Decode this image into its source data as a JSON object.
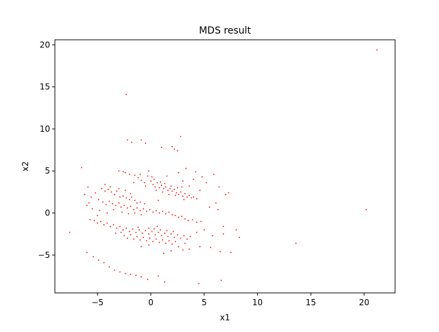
{
  "chart_data": {
    "type": "scatter",
    "title": "MDS result",
    "xlabel": "x1",
    "ylabel": "x2",
    "xlim": [
      -9.0,
      22.9
    ],
    "ylim": [
      -9.5,
      20.6
    ],
    "xticks": [
      -5,
      0,
      5,
      10,
      15,
      20
    ],
    "yticks": [
      -5,
      0,
      5,
      10,
      15,
      20
    ],
    "grid": false,
    "marker_color": "#ff0000",
    "series": [
      {
        "points": [
          [
            21.2,
            19.4
          ],
          [
            20.2,
            0.4
          ],
          [
            13.6,
            -3.6
          ],
          [
            -2.3,
            14.1
          ],
          [
            -7.6,
            -2.3
          ],
          [
            -6.5,
            5.4
          ],
          [
            -2.2,
            8.7
          ],
          [
            -1.8,
            8.4
          ],
          [
            -0.9,
            8.7
          ],
          [
            -0.5,
            8.3
          ],
          [
            1.0,
            7.8
          ],
          [
            2.0,
            7.9
          ],
          [
            2.8,
            9.1
          ],
          [
            2.5,
            7.4
          ],
          [
            2.2,
            7.6
          ],
          [
            -3.0,
            5.0
          ],
          [
            -2.6,
            4.9
          ],
          [
            -2.4,
            4.8
          ],
          [
            -2.0,
            4.6
          ],
          [
            -1.5,
            4.5
          ],
          [
            -1.2,
            4.2
          ],
          [
            -0.9,
            3.9
          ],
          [
            -0.6,
            3.6
          ],
          [
            -0.3,
            4.4
          ],
          [
            0.0,
            3.8
          ],
          [
            0.2,
            3.4
          ],
          [
            0.4,
            3.1
          ],
          [
            0.6,
            3.6
          ],
          [
            0.8,
            3.0
          ],
          [
            1.0,
            3.3
          ],
          [
            1.2,
            2.9
          ],
          [
            1.4,
            3.1
          ],
          [
            1.6,
            2.7
          ],
          [
            1.8,
            2.9
          ],
          [
            2.0,
            2.6
          ],
          [
            2.2,
            2.8
          ],
          [
            2.4,
            2.4
          ],
          [
            2.6,
            2.2
          ],
          [
            2.8,
            2.5
          ],
          [
            3.0,
            2.0
          ],
          [
            3.2,
            2.3
          ],
          [
            3.4,
            1.9
          ],
          [
            3.6,
            2.1
          ],
          [
            3.8,
            1.8
          ],
          [
            4.0,
            1.9
          ],
          [
            4.3,
            1.7
          ],
          [
            0.5,
            2.7
          ],
          [
            0.9,
            3.7
          ],
          [
            1.3,
            3.5
          ],
          [
            1.9,
            3.2
          ],
          [
            2.5,
            3.0
          ],
          [
            -0.5,
            3.2
          ],
          [
            0.3,
            4.0
          ],
          [
            1.1,
            2.5
          ],
          [
            1.7,
            2.2
          ],
          [
            2.3,
            2.1
          ],
          [
            3.1,
            1.6
          ],
          [
            2.9,
            3.1
          ],
          [
            0.1,
            4.3
          ],
          [
            -1.0,
            4.6
          ],
          [
            -0.2,
            5.0
          ],
          [
            1.5,
            4.4
          ],
          [
            2.6,
            4.8
          ],
          [
            3.3,
            5.3
          ],
          [
            4.2,
            4.9
          ],
          [
            4.8,
            4.3
          ],
          [
            5.2,
            3.6
          ],
          [
            5.9,
            4.6
          ],
          [
            6.4,
            3.1
          ],
          [
            6.1,
            1.2
          ],
          [
            7.3,
            2.4
          ],
          [
            4.6,
            2.7
          ],
          [
            5.5,
            0.7
          ],
          [
            6.3,
            0.4
          ],
          [
            4.0,
            4.0
          ],
          [
            3.0,
            3.8
          ],
          [
            3.6,
            3.2
          ],
          [
            -1.6,
            3.6
          ],
          [
            -4.6,
            2.9
          ],
          [
            -4.3,
            2.6
          ],
          [
            -4.0,
            2.8
          ],
          [
            -3.7,
            2.5
          ],
          [
            -3.4,
            2.2
          ],
          [
            -3.2,
            2.6
          ],
          [
            -2.9,
            1.9
          ],
          [
            -2.6,
            2.0
          ],
          [
            -2.3,
            1.8
          ],
          [
            -2.0,
            1.6
          ],
          [
            -1.8,
            1.9
          ],
          [
            -1.5,
            1.5
          ],
          [
            -1.3,
            1.2
          ],
          [
            -1.0,
            1.3
          ],
          [
            -5.2,
            2.4
          ],
          [
            -5.6,
            1.9
          ],
          [
            -4.9,
            1.6
          ],
          [
            -4.5,
            1.3
          ],
          [
            -4.2,
            1.0
          ],
          [
            -3.9,
            1.4
          ],
          [
            -3.6,
            1.1
          ],
          [
            -3.3,
            0.9
          ],
          [
            -3.0,
            1.2
          ],
          [
            -2.8,
            0.7
          ],
          [
            -2.5,
            0.9
          ],
          [
            -2.2,
            0.6
          ],
          [
            -1.9,
            0.8
          ],
          [
            -1.6,
            0.4
          ],
          [
            -1.3,
            0.6
          ],
          [
            -1.0,
            0.3
          ],
          [
            -0.7,
            0.5
          ],
          [
            -0.4,
            0.2
          ],
          [
            -0.1,
            0.4
          ],
          [
            0.2,
            0.1
          ],
          [
            0.5,
            0.3
          ],
          [
            0.8,
            0.0
          ],
          [
            1.1,
            0.2
          ],
          [
            1.4,
            -0.1
          ],
          [
            1.7,
            0.1
          ],
          [
            2.0,
            -0.2
          ],
          [
            2.3,
            -0.3
          ],
          [
            2.6,
            -0.5
          ],
          [
            2.9,
            -0.4
          ],
          [
            3.2,
            -0.7
          ],
          [
            3.5,
            -0.9
          ],
          [
            3.9,
            -0.8
          ],
          [
            4.3,
            -1.1
          ],
          [
            4.7,
            -1.0
          ],
          [
            -6.0,
            0.9
          ],
          [
            -5.8,
            1.2
          ],
          [
            -5.5,
            0.5
          ],
          [
            -4.8,
            0.3
          ],
          [
            -4.1,
            0.0
          ],
          [
            -3.5,
            0.4
          ],
          [
            -2.7,
            0.1
          ],
          [
            -2.1,
            -0.1
          ],
          [
            -1.5,
            0.0
          ],
          [
            -0.9,
            -0.2
          ],
          [
            -3.8,
            3.1
          ],
          [
            -3.0,
            2.9
          ],
          [
            -2.4,
            2.7
          ],
          [
            -5.0,
            -0.3
          ],
          [
            -0.6,
            1.1
          ],
          [
            -5.7,
            -0.8
          ],
          [
            -5.3,
            -0.9
          ],
          [
            -5.0,
            -1.2
          ],
          [
            -4.7,
            -1.0
          ],
          [
            -4.4,
            -1.4
          ],
          [
            -4.1,
            -1.2
          ],
          [
            -3.8,
            -1.6
          ],
          [
            -3.5,
            -1.4
          ],
          [
            -3.2,
            -1.8
          ],
          [
            -2.9,
            -1.6
          ],
          [
            -2.6,
            -2.0
          ],
          [
            -2.3,
            -1.8
          ],
          [
            -2.0,
            -2.2
          ],
          [
            -1.7,
            -1.9
          ],
          [
            -1.4,
            -2.3
          ],
          [
            -1.1,
            -2.0
          ],
          [
            -0.8,
            -2.4
          ],
          [
            -0.5,
            -2.1
          ],
          [
            -0.2,
            -2.5
          ],
          [
            0.1,
            -2.2
          ],
          [
            0.4,
            -2.6
          ],
          [
            0.7,
            -2.3
          ],
          [
            1.0,
            -2.7
          ],
          [
            1.3,
            -2.4
          ],
          [
            1.6,
            -2.8
          ],
          [
            1.9,
            -2.5
          ],
          [
            2.2,
            -2.9
          ],
          [
            2.5,
            -2.6
          ],
          [
            2.8,
            -3.0
          ],
          [
            3.1,
            -2.7
          ],
          [
            3.4,
            -3.1
          ],
          [
            3.7,
            -2.8
          ],
          [
            -2.5,
            -2.7
          ],
          [
            -2.2,
            -3.0
          ],
          [
            -1.9,
            -2.6
          ],
          [
            -1.6,
            -3.1
          ],
          [
            -1.3,
            -2.8
          ],
          [
            -1.0,
            -3.2
          ],
          [
            -0.7,
            -2.9
          ],
          [
            -0.4,
            -3.3
          ],
          [
            -0.1,
            -3.0
          ],
          [
            0.2,
            -3.4
          ],
          [
            0.5,
            -3.1
          ],
          [
            0.8,
            -3.5
          ],
          [
            1.1,
            -3.2
          ],
          [
            1.4,
            -3.6
          ],
          [
            1.7,
            -3.3
          ],
          [
            2.0,
            -3.7
          ],
          [
            2.3,
            -3.4
          ],
          [
            -0.2,
            -1.8
          ],
          [
            0.3,
            -1.9
          ],
          [
            0.9,
            -2.0
          ],
          [
            1.5,
            -2.1
          ],
          [
            2.1,
            -2.2
          ],
          [
            -3.3,
            -2.4
          ],
          [
            -2.8,
            -2.3
          ],
          [
            -1.2,
            -1.7
          ],
          [
            0.6,
            -1.6
          ],
          [
            -6.0,
            -4.7
          ],
          [
            -5.4,
            -5.2
          ],
          [
            -4.9,
            -5.6
          ],
          [
            -4.4,
            -5.9
          ],
          [
            -3.9,
            -6.4
          ],
          [
            -3.4,
            -6.8
          ],
          [
            -2.9,
            -7.0
          ],
          [
            -2.4,
            -7.2
          ],
          [
            -1.9,
            -7.3
          ],
          [
            -1.4,
            -7.4
          ],
          [
            -0.9,
            -7.6
          ],
          [
            -0.3,
            -7.9
          ],
          [
            1.3,
            -8.2
          ],
          [
            0.7,
            -7.5
          ],
          [
            4.5,
            -8.4
          ],
          [
            6.6,
            -8.0
          ],
          [
            3.6,
            -4.3
          ],
          [
            4.6,
            -4.0
          ],
          [
            5.6,
            -4.1
          ],
          [
            6.5,
            -4.6
          ],
          [
            7.5,
            -4.7
          ],
          [
            8.3,
            -2.9
          ],
          [
            8.0,
            -2.0
          ],
          [
            5.0,
            -2.0
          ],
          [
            4.3,
            -2.3
          ],
          [
            5.8,
            -2.7
          ],
          [
            6.8,
            -2.5
          ],
          [
            2.6,
            -4.0
          ],
          [
            1.9,
            -4.5
          ],
          [
            1.2,
            -4.8
          ],
          [
            -0.2,
            -3.8
          ],
          [
            -0.9,
            -4.0
          ],
          [
            3.0,
            -4.4
          ],
          [
            3.2,
            -3.6
          ],
          [
            -5.9,
            3.1
          ],
          [
            -6.2,
            2.2
          ],
          [
            -4.3,
            3.4
          ],
          [
            -1.9,
            2.3
          ],
          [
            0.7,
            1.5
          ],
          [
            6.8,
            -1.6
          ],
          [
            7.0,
            2.2
          ]
        ]
      }
    ]
  }
}
